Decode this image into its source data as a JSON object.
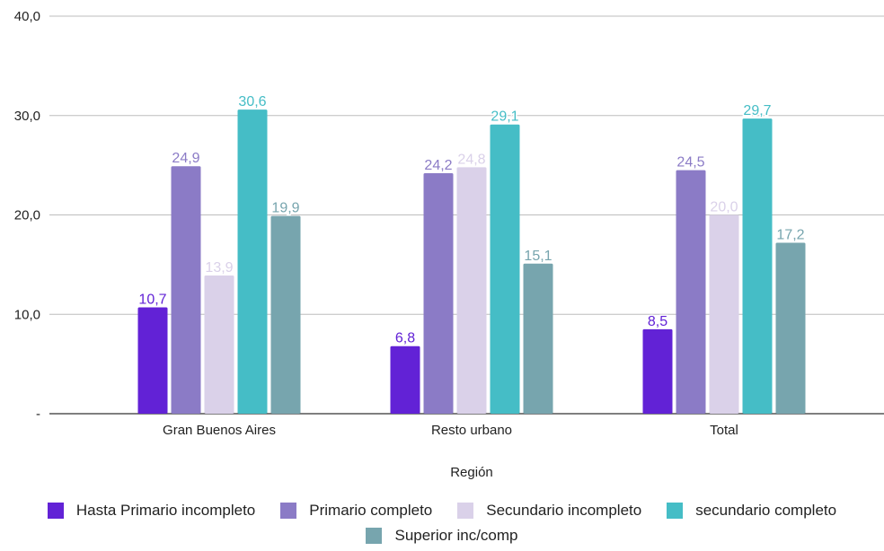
{
  "chart_data": {
    "type": "bar",
    "categories": [
      "Gran Buenos Aires",
      "Resto urbano",
      "Total"
    ],
    "series": [
      {
        "name": "Hasta Primario incompleto",
        "values": [
          10.7,
          6.8,
          8.5
        ],
        "labels": [
          "10,7",
          "6,8",
          "8,5"
        ],
        "color": "#6222d6"
      },
      {
        "name": "Primario completo",
        "values": [
          24.9,
          24.2,
          24.5
        ],
        "labels": [
          "24,9",
          "24,2",
          "24,5"
        ],
        "color": "#8b7bc6"
      },
      {
        "name": "Secundario incompleto",
        "values": [
          13.9,
          24.8,
          20.0
        ],
        "labels": [
          "13,9",
          "24,8",
          "20,0"
        ],
        "color": "#dad1e9"
      },
      {
        "name": "secundario completo",
        "values": [
          30.6,
          29.1,
          29.7
        ],
        "labels": [
          "30,6",
          "29,1",
          "29,7"
        ],
        "color": "#45bdc6"
      },
      {
        "name": "Superior inc/comp",
        "values": [
          19.9,
          15.1,
          17.2
        ],
        "labels": [
          "19,9",
          "15,1",
          "17,2"
        ],
        "color": "#77a5ae"
      }
    ],
    "xlabel": "Región",
    "ylabel": "",
    "ylim": [
      0,
      40
    ],
    "yticks": [
      0,
      10,
      20,
      30,
      40
    ],
    "ytick_labels": [
      "-",
      "10,0",
      "20,0",
      "30,0",
      "40,0"
    ],
    "grid": true,
    "legend_position": "bottom"
  }
}
